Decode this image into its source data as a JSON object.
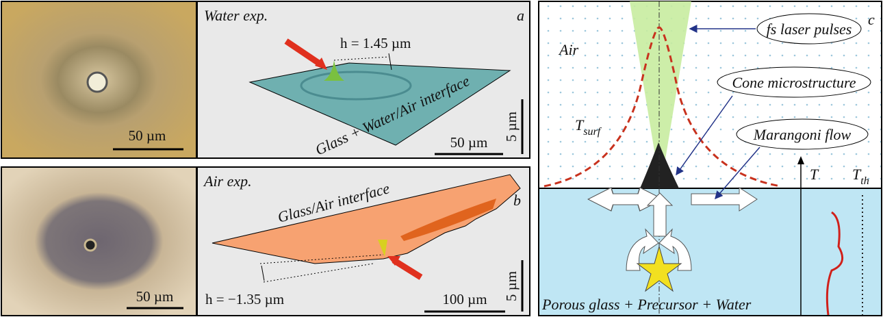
{
  "panel_a": {
    "label": "a",
    "title": "Water exp.",
    "micrograph_scale": "50 µm",
    "height": "h = 1.45 µm",
    "surface": "Glass + Water/Air interface",
    "scale_x": "50 µm",
    "scale_z": "5 µm"
  },
  "panel_b": {
    "label": "b",
    "title": "Air exp.",
    "micrograph_scale": "50 µm",
    "height": "h = −1.35 µm",
    "surface": "Glass/Air interface",
    "scale_x": "100 µm",
    "scale_z": "5 µm"
  },
  "panel_c": {
    "label": "c",
    "laser": "fs laser pulses",
    "air": "Air",
    "cone": "Cone microstructure",
    "temperature_surface": {
      "symbol": "T",
      "subscript": "surf"
    },
    "flow": "Marangoni flow",
    "temperature_axis": "T",
    "threshold": {
      "symbol": "T",
      "subscript": "th"
    },
    "substrate": "Porous glass + Precursor + Water"
  }
}
